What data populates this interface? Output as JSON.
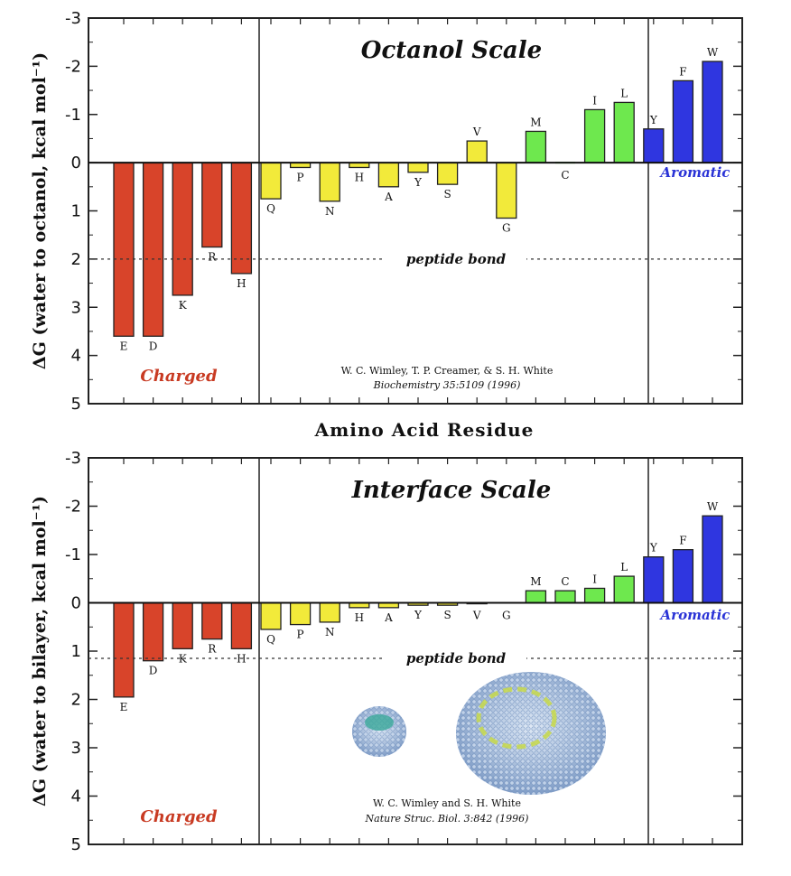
{
  "colors": {
    "charged": "#d8442a",
    "polar": "#f2ea3a",
    "hydrophobic": "#6ee84e",
    "aromatic": "#2f36e0",
    "charged_text": "#c83a22",
    "aromatic_text": "#2a33d6"
  },
  "xaxis_title": "Amino Acid Residue",
  "chart_data": [
    {
      "type": "bar",
      "title": "Octanol Scale",
      "ylabel": "ΔG (water to octanol, kcal mol⁻¹)",
      "ylim": [
        5,
        -3
      ],
      "yticks": [
        "-3",
        "-2",
        "-1",
        "0",
        "1",
        "2",
        "3",
        "4",
        "5"
      ],
      "categories": [
        "E",
        "D",
        "K",
        "R",
        "H",
        "Q",
        "P",
        "N",
        "H",
        "A",
        "Y",
        "S",
        "V",
        "G",
        "M",
        "C",
        "I",
        "L",
        "Y",
        "F",
        "W"
      ],
      "values": [
        3.6,
        3.6,
        2.75,
        1.75,
        2.3,
        0.75,
        0.1,
        0.8,
        0.1,
        0.5,
        0.2,
        0.45,
        -0.45,
        1.15,
        -0.65,
        0.0,
        -1.1,
        -1.25,
        -0.7,
        -1.7,
        -2.1
      ],
      "groups": [
        "charged",
        "charged",
        "charged",
        "charged",
        "charged",
        "polar",
        "polar",
        "polar",
        "polar",
        "polar",
        "polar",
        "polar",
        "polar",
        "polar",
        "hydrophobic",
        "hydrophobic",
        "hydrophobic",
        "hydrophobic",
        "aromatic",
        "aromatic",
        "aromatic"
      ],
      "reference_line": {
        "value": 2.0,
        "label": "peptide bond"
      },
      "group_labels": {
        "charged": "Charged",
        "aromatic": "Aromatic"
      },
      "citation": [
        "W. C. Wimley, T. P. Creamer, & S. H. White",
        "Biochemistry 35:5109 (1996)"
      ],
      "grid": false
    },
    {
      "type": "bar",
      "title": "Interface Scale",
      "ylabel": "ΔG (water to bilayer, kcal mol⁻¹)",
      "ylim": [
        5,
        -3
      ],
      "yticks": [
        "-3",
        "-2",
        "-1",
        "0",
        "1",
        "2",
        "3",
        "4",
        "5"
      ],
      "categories": [
        "E",
        "D",
        "K",
        "R",
        "H",
        "Q",
        "P",
        "N",
        "H",
        "A",
        "Y",
        "S",
        "V",
        "G",
        "M",
        "C",
        "I",
        "L",
        "Y",
        "F",
        "W"
      ],
      "values": [
        1.95,
        1.2,
        0.95,
        0.75,
        0.95,
        0.55,
        0.45,
        0.4,
        0.1,
        0.1,
        0.05,
        0.05,
        0.02,
        0.0,
        -0.25,
        -0.25,
        -0.3,
        -0.55,
        -0.95,
        -1.1,
        -1.8
      ],
      "groups": [
        "charged",
        "charged",
        "charged",
        "charged",
        "charged",
        "polar",
        "polar",
        "polar",
        "polar",
        "polar",
        "polar",
        "polar",
        "polar",
        "polar",
        "hydrophobic",
        "hydrophobic",
        "hydrophobic",
        "hydrophobic",
        "aromatic",
        "aromatic",
        "aromatic"
      ],
      "reference_line": {
        "value": 1.15,
        "label": "peptide bond"
      },
      "group_labels": {
        "charged": "Charged",
        "aromatic": "Aromatic"
      },
      "citation": [
        "W. C. Wimley and S. H. White",
        "Nature Struc. Biol. 3:842 (1996)"
      ],
      "grid": false
    }
  ]
}
